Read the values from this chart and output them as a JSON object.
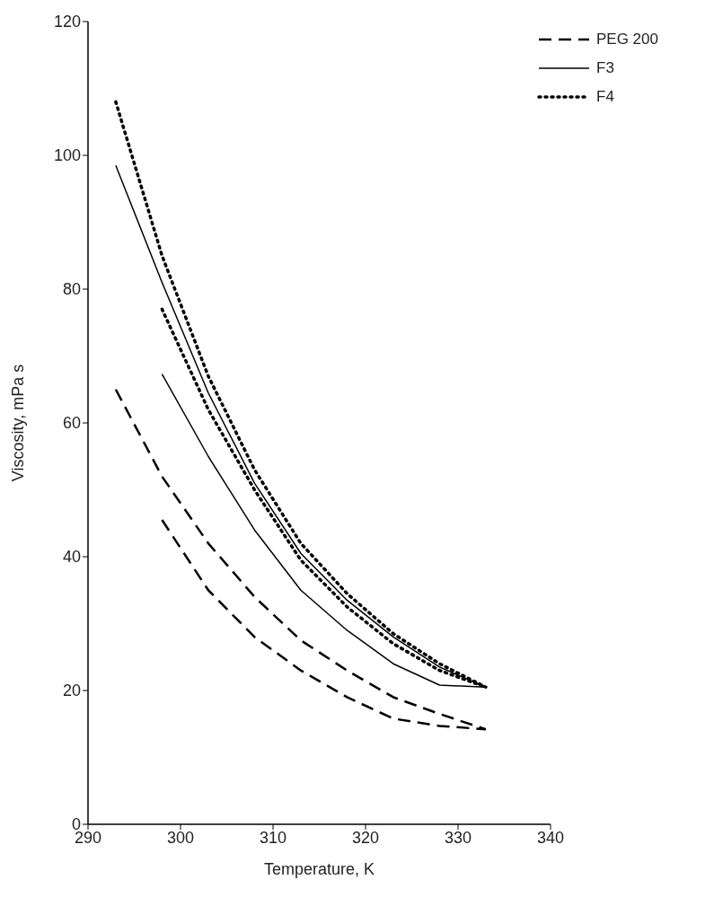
{
  "chart_data": {
    "type": "line",
    "xlabel": "Temperature, K",
    "ylabel": "Viscosity, mPa s",
    "xlim": [
      290,
      340
    ],
    "xticks": [
      290,
      300,
      310,
      320,
      330,
      340
    ],
    "ylim": [
      0,
      120
    ],
    "yticks": [
      0,
      20,
      40,
      60,
      80,
      100,
      120
    ],
    "grid": false,
    "legend": "top right",
    "marker": "none",
    "series": [
      {
        "name": "PEG 200",
        "color": "#000000",
        "line_style": "dashed",
        "x": [
          293,
          298,
          303,
          308,
          313,
          318,
          323,
          328,
          333
        ],
        "values": [
          65,
          52,
          42,
          34,
          27.5,
          23,
          19,
          16.5,
          14.2
        ]
      },
      {
        "color": "#000000",
        "line_style": "dashed",
        "x": [
          298,
          303,
          308,
          313,
          318,
          323,
          328,
          333
        ],
        "values": [
          45.5,
          35,
          28,
          23,
          19,
          15.8,
          14.7,
          14.2
        ]
      },
      {
        "name": "F3",
        "color": "#000000",
        "line_style": "solid",
        "x": [
          293,
          298,
          303,
          308,
          313,
          318,
          323,
          328,
          333
        ],
        "values": [
          98.5,
          81,
          64.5,
          51,
          40.5,
          33.5,
          28,
          23.5,
          20.5
        ]
      },
      {
        "color": "#000000",
        "line_style": "solid",
        "x": [
          298,
          303,
          308,
          313,
          318,
          323,
          328,
          333
        ],
        "values": [
          67.3,
          55,
          44,
          35,
          29,
          24,
          20.8,
          20.5
        ]
      },
      {
        "name": "F4",
        "color": "#000000",
        "line_style": "dotted",
        "x": [
          293,
          298,
          303,
          308,
          313,
          318,
          323,
          328,
          333
        ],
        "values": [
          108,
          85,
          67,
          53,
          42,
          34.5,
          28.5,
          24,
          20.5
        ]
      },
      {
        "color": "#000000",
        "line_style": "dotted",
        "x": [
          298,
          303,
          308,
          313,
          318,
          323,
          328,
          333
        ],
        "values": [
          77,
          62,
          50,
          39.5,
          32.5,
          27,
          23,
          20.5
        ]
      }
    ]
  }
}
